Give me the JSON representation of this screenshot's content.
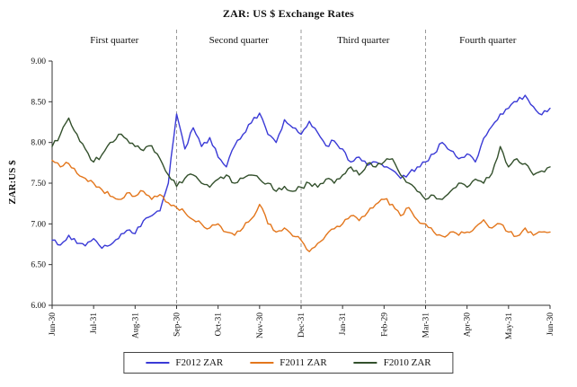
{
  "chart_data": {
    "type": "line",
    "title": "ZAR: US $ Exchange Rates",
    "ylabel": "ZAR:US $",
    "ylim": [
      6.0,
      9.0
    ],
    "ytick_step": 0.5,
    "ytick_labels": [
      "6.00",
      "6.50",
      "7.00",
      "7.50",
      "8.00",
      "8.50",
      "9.00"
    ],
    "x_months": 12,
    "x_tick_labels": [
      "Jun-30",
      "Jul-31",
      "Aug-31",
      "Sep-30",
      "Oct-31",
      "Nov-30",
      "Dec-31",
      "Jan-31",
      "Feb-29",
      "Mar-31",
      "Apr-30",
      "May-31",
      "Jun-30"
    ],
    "quarter_labels": [
      "First quarter",
      "Second quarter",
      "Third quarter",
      "Fourth quarter"
    ],
    "quarter_boundaries_months": [
      3,
      6,
      9
    ],
    "grid": false,
    "legend_position": "bottom",
    "divider_color": "#999999",
    "axis_color": "#333333",
    "series": [
      {
        "name": "F2012 ZAR",
        "color": "#3a3ad6",
        "x_step_months": 0.2,
        "values": [
          6.8,
          6.74,
          6.86,
          6.76,
          6.73,
          6.82,
          6.7,
          6.74,
          6.82,
          6.92,
          6.88,
          7.04,
          7.1,
          7.16,
          7.5,
          8.35,
          7.92,
          8.18,
          7.95,
          8.06,
          7.82,
          7.7,
          7.96,
          8.1,
          8.24,
          8.36,
          8.1,
          8.0,
          8.28,
          8.18,
          8.1,
          8.26,
          8.12,
          7.96,
          8.02,
          7.92,
          7.76,
          7.82,
          7.72,
          7.76,
          7.7,
          7.66,
          7.56,
          7.62,
          7.7,
          7.76,
          7.86,
          8.0,
          7.9,
          7.8,
          7.86,
          7.76,
          8.05,
          8.2,
          8.35,
          8.42,
          8.5,
          8.58,
          8.44,
          8.34,
          8.42
        ]
      },
      {
        "name": "F2011 ZAR",
        "color": "#e3761c",
        "x_step_months": 0.2,
        "values": [
          7.78,
          7.7,
          7.74,
          7.62,
          7.56,
          7.5,
          7.42,
          7.34,
          7.3,
          7.38,
          7.34,
          7.4,
          7.3,
          7.36,
          7.26,
          7.2,
          7.14,
          7.05,
          7.0,
          6.95,
          7.0,
          6.9,
          6.86,
          6.95,
          7.06,
          7.24,
          7.0,
          6.9,
          6.95,
          6.85,
          6.8,
          6.66,
          6.76,
          6.86,
          6.94,
          7.0,
          7.1,
          7.04,
          7.14,
          7.24,
          7.3,
          7.24,
          7.1,
          7.2,
          7.05,
          7.0,
          6.9,
          6.85,
          6.9,
          6.86,
          6.9,
          6.96,
          7.05,
          6.95,
          7.0,
          6.9,
          6.85,
          6.95,
          6.86,
          6.9,
          6.9
        ]
      },
      {
        "name": "F2010 ZAR",
        "color": "#33502c",
        "x_step_months": 0.2,
        "values": [
          7.95,
          8.1,
          8.3,
          8.1,
          7.92,
          7.76,
          7.85,
          8.0,
          8.1,
          8.04,
          7.95,
          7.9,
          7.96,
          7.8,
          7.6,
          7.46,
          7.56,
          7.6,
          7.5,
          7.45,
          7.55,
          7.6,
          7.5,
          7.56,
          7.6,
          7.55,
          7.5,
          7.4,
          7.46,
          7.4,
          7.45,
          7.5,
          7.45,
          7.55,
          7.5,
          7.6,
          7.7,
          7.6,
          7.74,
          7.7,
          7.76,
          7.8,
          7.6,
          7.5,
          7.4,
          7.3,
          7.35,
          7.3,
          7.4,
          7.5,
          7.45,
          7.55,
          7.5,
          7.62,
          7.95,
          7.7,
          7.8,
          7.74,
          7.6,
          7.65,
          7.7
        ]
      }
    ]
  }
}
